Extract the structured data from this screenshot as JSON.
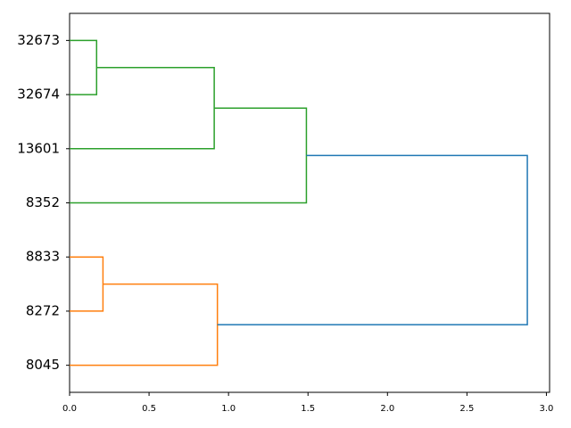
{
  "chart_data": {
    "type": "dendrogram",
    "orientation": "right",
    "leaves": [
      "32673",
      "32674",
      "13601",
      "8352",
      "8833",
      "8272",
      "8045"
    ],
    "merges": [
      {
        "children": [
          0,
          1
        ],
        "height": 0.17,
        "color": "#2ca02c"
      },
      {
        "children": [
          7,
          2
        ],
        "height": 0.91,
        "color": "#2ca02c"
      },
      {
        "children": [
          8,
          3
        ],
        "height": 1.49,
        "color": "#2ca02c"
      },
      {
        "children": [
          4,
          5
        ],
        "height": 0.21,
        "color": "#ff7f0e"
      },
      {
        "children": [
          10,
          6
        ],
        "height": 0.93,
        "color": "#ff7f0e"
      },
      {
        "children": [
          9,
          11
        ],
        "height": 2.88,
        "color": "#1f77b4"
      }
    ],
    "xlim": [
      0,
      3.02
    ],
    "xticks": [
      {
        "value": 0,
        "label": "0.0"
      },
      0.5,
      {
        "value": 1,
        "label": "1.0"
      },
      1.5,
      {
        "value": 2,
        "label": "2.0"
      },
      2.5,
      {
        "value": 3,
        "label": "3.0"
      }
    ]
  }
}
